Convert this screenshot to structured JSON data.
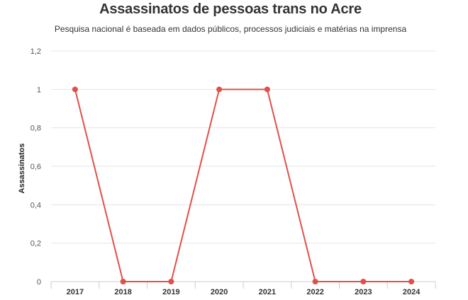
{
  "chart_data": {
    "type": "line",
    "title": "Assassinatos de pessoas trans no Acre",
    "subtitle": "Pesquisa nacional é baseada em dados públicos, processos judiciais e matérias na imprensa",
    "xlabel": "",
    "ylabel": "Assassinatos",
    "categories": [
      "2017",
      "2018",
      "2019",
      "2020",
      "2021",
      "2022",
      "2023",
      "2024"
    ],
    "series": [
      {
        "values": [
          1,
          0,
          0,
          1,
          1,
          0,
          0,
          0
        ]
      }
    ],
    "ylim": [
      0,
      1.2
    ],
    "yticks": [
      "0",
      "0,2",
      "0,4",
      "0,6",
      "0,8",
      "1",
      "1,2"
    ],
    "grid": true,
    "legend": "none"
  },
  "colors": {
    "series": "#e0504a",
    "grid": "#e6e6e6",
    "axis": "#cccccc"
  }
}
